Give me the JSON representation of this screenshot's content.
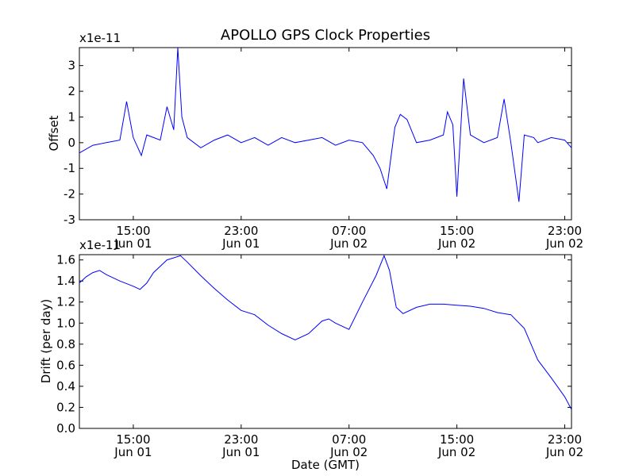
{
  "title": "APOLLO GPS Clock Properties",
  "x_tick_labels": [
    {
      "time": "15:00",
      "date": "Jun 01",
      "t": 4
    },
    {
      "time": "23:00",
      "date": "Jun 01",
      "t": 12
    },
    {
      "time": "07:00",
      "date": "Jun 02",
      "t": 20
    },
    {
      "time": "15:00",
      "date": "Jun 02",
      "t": 28
    },
    {
      "time": "23:00",
      "date": "Jun 02",
      "t": 36
    }
  ],
  "colors": {
    "series": "#0000ff",
    "axes": "#000000",
    "background": "#ffffff"
  },
  "chart_data": [
    {
      "type": "line",
      "title": "APOLLO GPS Clock Properties",
      "xlabel": "",
      "ylabel": "Offset",
      "y_scale_label": "x1e-11",
      "x_unit": "hours after 11:00 Jun 01 (GMT)",
      "xlim": [
        0,
        36.5
      ],
      "ylim": [
        -3,
        3.7
      ],
      "yticks": [
        -3,
        -2,
        -1,
        0,
        1,
        2,
        3
      ],
      "grid": false,
      "series": [
        {
          "x": [
            0,
            1,
            2,
            3,
            3.5,
            4,
            4.6,
            5,
            6,
            6.5,
            7,
            7.3,
            7.6,
            8,
            9,
            10,
            11,
            12,
            13,
            14,
            15,
            16,
            17,
            18,
            19,
            20,
            21,
            21.8,
            22.3,
            22.8,
            23.4,
            23.8,
            24.3,
            25,
            26,
            27,
            27.3,
            27.7,
            28,
            28.5,
            29,
            30,
            31,
            31.5,
            32,
            32.6,
            33,
            33.7,
            34,
            35,
            36,
            36.5
          ],
          "y": [
            -0.4,
            -0.1,
            0.0,
            0.1,
            1.6,
            0.2,
            -0.5,
            0.3,
            0.1,
            1.4,
            0.5,
            3.7,
            1.0,
            0.2,
            -0.2,
            0.1,
            0.3,
            0.0,
            0.2,
            -0.1,
            0.2,
            0.0,
            0.1,
            0.2,
            -0.1,
            0.1,
            0.0,
            -0.5,
            -1.0,
            -1.8,
            0.6,
            1.1,
            0.9,
            0.0,
            0.1,
            0.3,
            1.2,
            0.7,
            -2.1,
            2.5,
            0.3,
            0.0,
            0.2,
            1.7,
            0.0,
            -2.3,
            0.3,
            0.2,
            0.0,
            0.2,
            0.1,
            -0.2
          ]
        }
      ]
    },
    {
      "type": "line",
      "xlabel": "Date (GMT)",
      "ylabel": "Drift (per day)",
      "y_scale_label": "x1e-11",
      "x_unit": "hours after 11:00 Jun 01 (GMT)",
      "xlim": [
        0,
        36.5
      ],
      "ylim": [
        0,
        1.65
      ],
      "yticks": [
        0.0,
        0.2,
        0.4,
        0.6,
        0.8,
        1.0,
        1.2,
        1.4,
        1.6
      ],
      "grid": false,
      "series": [
        {
          "x": [
            0,
            0.5,
            1,
            1.5,
            2,
            3,
            4,
            4.5,
            5,
            5.5,
            6,
            6.5,
            7,
            7.5,
            8,
            9,
            10,
            11,
            12,
            13,
            14,
            15,
            16,
            17,
            18,
            18.5,
            19,
            20,
            21,
            22,
            22.6,
            23,
            23.5,
            24,
            25,
            26,
            27,
            28,
            29,
            30,
            31,
            32,
            33,
            33.5,
            34,
            35,
            36,
            36.5
          ],
          "y": [
            1.38,
            1.44,
            1.48,
            1.5,
            1.46,
            1.4,
            1.35,
            1.32,
            1.38,
            1.48,
            1.54,
            1.6,
            1.62,
            1.64,
            1.58,
            1.45,
            1.33,
            1.22,
            1.12,
            1.08,
            0.98,
            0.9,
            0.84,
            0.9,
            1.02,
            1.04,
            1.0,
            0.94,
            1.2,
            1.45,
            1.64,
            1.5,
            1.15,
            1.09,
            1.15,
            1.18,
            1.18,
            1.17,
            1.16,
            1.14,
            1.1,
            1.08,
            0.95,
            0.8,
            0.65,
            0.48,
            0.3,
            0.18
          ]
        }
      ]
    }
  ]
}
